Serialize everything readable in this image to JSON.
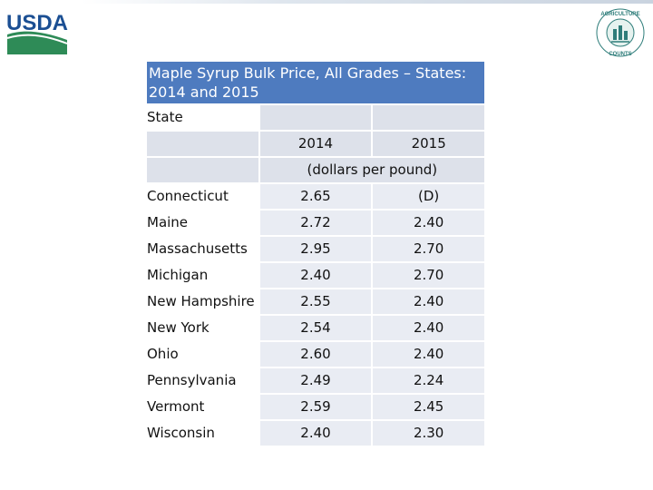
{
  "branding": {
    "logo_text": "USDA",
    "seal_text": "AGRICULTURE COUNTS",
    "colors": {
      "usda_blue": "#1b4f93",
      "usda_green": "#2e8b57",
      "title_fill": "#4e7bbf",
      "header_fill": "#dde1ea",
      "cell_fill": "#e9ecf3"
    }
  },
  "table": {
    "title": "Maple Syrup Bulk Price, All Grades – States: 2014 and 2015",
    "state_header": "State",
    "year_headers": [
      "2014",
      "2015"
    ],
    "unit_label": "(dollars per pound)",
    "rows": [
      {
        "state": "Connecticut",
        "y2014": "2.65",
        "y2015": "(D)"
      },
      {
        "state": "Maine",
        "y2014": "2.72",
        "y2015": "2.40"
      },
      {
        "state": "Massachusetts",
        "y2014": "2.95",
        "y2015": "2.70"
      },
      {
        "state": "Michigan",
        "y2014": "2.40",
        "y2015": "2.70"
      },
      {
        "state": "New Hampshire",
        "y2014": "2.55",
        "y2015": "2.40"
      },
      {
        "state": "New York",
        "y2014": "2.54",
        "y2015": "2.40"
      },
      {
        "state": "Ohio",
        "y2014": "2.60",
        "y2015": "2.40"
      },
      {
        "state": "Pennsylvania",
        "y2014": "2.49",
        "y2015": "2.24"
      },
      {
        "state": "Vermont",
        "y2014": "2.59",
        "y2015": "2.45"
      },
      {
        "state": "Wisconsin",
        "y2014": "2.40",
        "y2015": "2.30"
      }
    ]
  }
}
